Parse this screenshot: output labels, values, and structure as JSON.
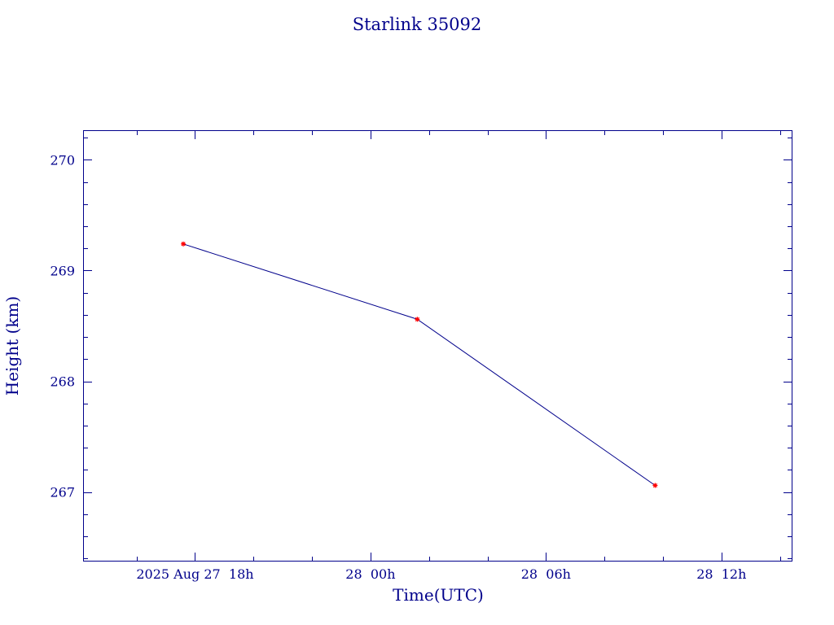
{
  "colors": {
    "axis": "#00008b",
    "text": "#00008b",
    "line": "#00008b",
    "marker": "#ff0000",
    "background": "#ffffff"
  },
  "chart_data": {
    "type": "line",
    "title": "Starlink 35092",
    "xlabel": "Time(UTC)",
    "ylabel": "Height (km)",
    "grid": false,
    "x_unit": "UTC datetime",
    "xlim": [
      "2025-08-27T14:12",
      "2025-08-28T14:24"
    ],
    "ylim": [
      266.38,
      270.26
    ],
    "x_ticks": [
      {
        "value": "2025-08-27T18:00",
        "label": "2025 Aug 27  18h"
      },
      {
        "value": "2025-08-28T00:00",
        "label": "28  00h"
      },
      {
        "value": "2025-08-28T06:00",
        "label": "28  06h"
      },
      {
        "value": "2025-08-28T12:00",
        "label": "28  12h"
      }
    ],
    "y_ticks": [
      {
        "value": 267,
        "label": "267"
      },
      {
        "value": 268,
        "label": "268"
      },
      {
        "value": 269,
        "label": "269"
      },
      {
        "value": 270,
        "label": "270"
      }
    ],
    "series": [
      {
        "points": [
          {
            "x": "2025-08-27T17:36",
            "y": 269.24
          },
          {
            "x": "2025-08-28T01:36",
            "y": 268.56
          },
          {
            "x": "2025-08-28T09:44",
            "y": 267.06
          }
        ]
      }
    ]
  }
}
